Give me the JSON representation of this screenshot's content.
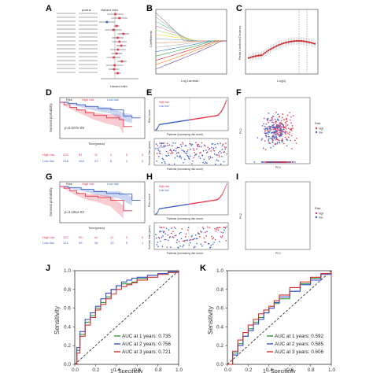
{
  "panels": {
    "A": {
      "label": "A",
      "hr_axis": "Hazard ratio",
      "header_pvalue": "pvalue",
      "header_hr": "Hazard ratio"
    },
    "B": {
      "label": "B",
      "xlabel": "Log Lambda",
      "ylabel": "Coefficients"
    },
    "C": {
      "label": "C",
      "xlabel": "Log(λ)",
      "ylabel": "Partial Likelihood Deviance"
    },
    "D": {
      "label": "D",
      "ylabel": "Survival probability",
      "xlabel": "Time(years)",
      "pvalue": "p=6.027e-09",
      "legend_risk": "Risk",
      "legend_high": "High risk",
      "legend_low": "Low risk",
      "risk_table_high": [
        "229",
        "81",
        "11",
        "2",
        "0",
        "0"
      ],
      "risk_table_low": [
        "218",
        "164",
        "21",
        "8",
        "2",
        "0"
      ],
      "row_high": "High risk",
      "row_low": "Low risk"
    },
    "E": {
      "label": "E",
      "legend_high": "High risk",
      "legend_low": "Low risk",
      "y1label": "Risk score",
      "x1label": "Patients (increasing risk score)",
      "y2label": "Survival time (years)",
      "x2label": "Patients (increasing risk score)",
      "legend_dead": "Dead",
      "legend_alive": "Alive"
    },
    "F": {
      "label": "F",
      "xlabel": "PC1",
      "ylabel": "PC2",
      "legend_title": "Risk",
      "legend_high": "high",
      "legend_low": "low"
    },
    "G": {
      "label": "G",
      "ylabel": "Survival probability",
      "xlabel": "Time(years)",
      "pvalue": "p=2.181e-02",
      "legend_risk": "Risk",
      "legend_high": "High risk",
      "legend_low": "Low risk",
      "risk_table_high": [
        "122",
        "90",
        "40",
        "12",
        "2",
        "0"
      ],
      "risk_table_low": [
        "121",
        "99",
        "38",
        "13",
        "5",
        "1"
      ],
      "row_high": "High risk",
      "row_low": "Low risk"
    },
    "H": {
      "label": "H",
      "legend_high": "High risk",
      "legend_low": "Low risk",
      "y1label": "Risk score",
      "x1label": "Patients (increasing risk score)",
      "y2label": "Survival time (years)",
      "x2label": "Patients (increasing risk score)",
      "legend_dead": "Dead",
      "legend_alive": "Alive"
    },
    "I": {
      "label": "I",
      "xlabel": "PC1",
      "ylabel": "PC2",
      "legend_title": "Risk",
      "legend_high": "high",
      "legend_low": "low"
    },
    "J": {
      "label": "J",
      "xlabel": "1 - Specificity",
      "ylabel": "Sensitivity",
      "ticks": [
        "0.0",
        "0.2",
        "0.4",
        "0.6",
        "0.8",
        "1.0"
      ],
      "auc_labels": [
        "AUC at 1 years: 0.735",
        "AUC at 2 years: 0.756",
        "AUC at 3 years: 0.721"
      ]
    },
    "K": {
      "label": "K",
      "xlabel": "1 - Specificity",
      "ylabel": "Sensitivity",
      "ticks": [
        "0.0",
        "0.2",
        "0.4",
        "0.6",
        "0.8",
        "1.0"
      ],
      "auc_labels": [
        "AUC at 1 years: 0.592",
        "AUC at 2 years: 0.585",
        "AUC at 3 years: 0.606"
      ]
    }
  },
  "colors": {
    "high": "#e8334a",
    "low": "#3b5fc9",
    "auc1": "#2e9e3a",
    "auc2": "#3b4fd0",
    "auc3": "#d23030",
    "curve": "#cc2020"
  },
  "chart_data": [
    {
      "type": "line",
      "panel": "J",
      "series": [
        {
          "name": "AUC at 1 years: 0.735",
          "x": [
            0,
            0.02,
            0.05,
            0.1,
            0.15,
            0.2,
            0.25,
            0.3,
            0.35,
            0.4,
            0.45,
            0.5,
            0.55,
            0.6,
            0.7,
            0.8,
            0.9,
            1.0
          ],
          "y": [
            0,
            0.15,
            0.32,
            0.45,
            0.52,
            0.6,
            0.66,
            0.72,
            0.8,
            0.84,
            0.86,
            0.86,
            0.88,
            0.92,
            0.95,
            0.97,
            0.99,
            1.0
          ]
        },
        {
          "name": "AUC at 2 years: 0.756",
          "x": [
            0,
            0.02,
            0.05,
            0.1,
            0.15,
            0.2,
            0.25,
            0.3,
            0.35,
            0.4,
            0.45,
            0.5,
            0.55,
            0.6,
            0.7,
            0.8,
            0.9,
            1.0
          ],
          "y": [
            0,
            0.18,
            0.35,
            0.48,
            0.55,
            0.62,
            0.7,
            0.76,
            0.8,
            0.84,
            0.88,
            0.9,
            0.92,
            0.93,
            0.95,
            0.97,
            0.99,
            1.0
          ]
        },
        {
          "name": "AUC at 3 years: 0.721",
          "x": [
            0,
            0.02,
            0.05,
            0.1,
            0.15,
            0.2,
            0.25,
            0.3,
            0.35,
            0.4,
            0.45,
            0.5,
            0.55,
            0.6,
            0.7,
            0.8,
            0.9,
            1.0
          ],
          "y": [
            0,
            0.12,
            0.3,
            0.42,
            0.5,
            0.58,
            0.64,
            0.7,
            0.75,
            0.8,
            0.83,
            0.85,
            0.87,
            0.9,
            0.93,
            0.96,
            0.98,
            1.0
          ]
        }
      ]
    },
    {
      "type": "line",
      "panel": "K",
      "series": [
        {
          "name": "AUC at 1 years: 0.592",
          "x": [
            0,
            0.05,
            0.1,
            0.15,
            0.2,
            0.25,
            0.3,
            0.35,
            0.4,
            0.45,
            0.5,
            0.6,
            0.7,
            0.8,
            0.9,
            1.0
          ],
          "y": [
            0,
            0.12,
            0.22,
            0.3,
            0.38,
            0.45,
            0.5,
            0.55,
            0.6,
            0.65,
            0.7,
            0.78,
            0.86,
            0.92,
            0.97,
            1.0
          ]
        },
        {
          "name": "AUC at 2 years: 0.585",
          "x": [
            0,
            0.05,
            0.1,
            0.15,
            0.2,
            0.25,
            0.3,
            0.35,
            0.4,
            0.45,
            0.5,
            0.6,
            0.7,
            0.8,
            0.9,
            1.0
          ],
          "y": [
            0,
            0.1,
            0.2,
            0.3,
            0.36,
            0.43,
            0.48,
            0.55,
            0.6,
            0.66,
            0.72,
            0.78,
            0.85,
            0.9,
            0.96,
            1.0
          ]
        },
        {
          "name": "AUC at 3 years: 0.606",
          "x": [
            0,
            0.05,
            0.1,
            0.15,
            0.2,
            0.25,
            0.3,
            0.35,
            0.4,
            0.45,
            0.5,
            0.6,
            0.7,
            0.8,
            0.9,
            1.0
          ],
          "y": [
            0,
            0.14,
            0.26,
            0.34,
            0.42,
            0.48,
            0.54,
            0.58,
            0.62,
            0.68,
            0.74,
            0.82,
            0.88,
            0.93,
            0.97,
            1.0
          ]
        }
      ]
    }
  ]
}
